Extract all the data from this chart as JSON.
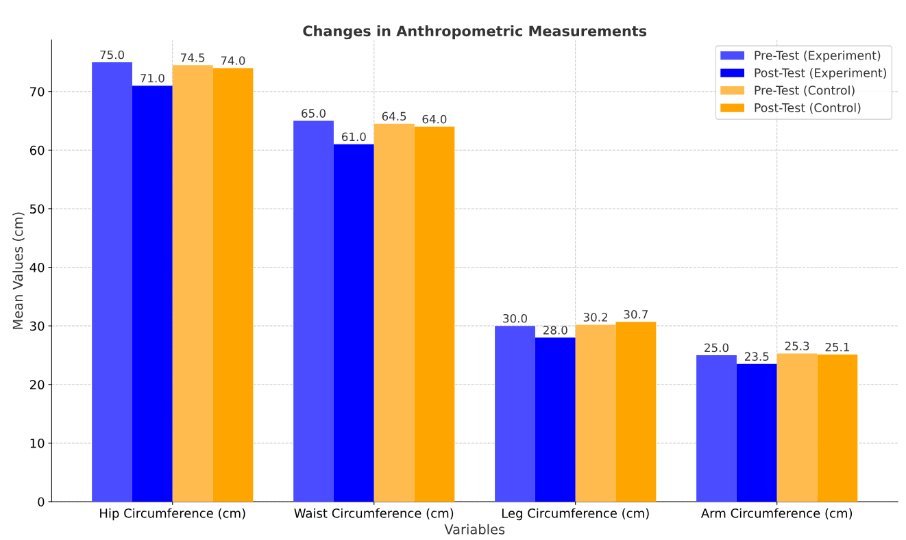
{
  "chart_data": {
    "type": "bar",
    "title": "Changes in Anthropometric Measurements",
    "xlabel": "Variables",
    "ylabel": "Mean Values (cm)",
    "categories": [
      "Hip Circumference (cm)",
      "Waist Circumference (cm)",
      "Leg Circumference (cm)",
      "Arm Circumference (cm)"
    ],
    "series": [
      {
        "name": "Pre-Test (Experiment)",
        "color": "#4b4bff",
        "values": [
          75.0,
          65.0,
          30.0,
          25.0
        ],
        "value_labels": [
          "75.0",
          "65.0",
          "30.0",
          "25.0"
        ]
      },
      {
        "name": "Post-Test (Experiment)",
        "color": "#0000ff",
        "values": [
          71.0,
          61.0,
          28.0,
          23.5
        ],
        "value_labels": [
          "71.0",
          "61.0",
          "28.0",
          "23.5"
        ]
      },
      {
        "name": "Pre-Test (Control)",
        "color": "#ffbb4d",
        "values": [
          74.5,
          64.5,
          30.2,
          25.3
        ],
        "value_labels": [
          "74.5",
          "64.5",
          "30.2",
          "25.3"
        ]
      },
      {
        "name": "Post-Test (Control)",
        "color": "#ffa500",
        "values": [
          74.0,
          64.0,
          30.7,
          25.1
        ],
        "value_labels": [
          "74.0",
          "64.0",
          "30.7",
          "25.1"
        ]
      }
    ],
    "ylim": [
      0,
      78.8
    ],
    "yticks": [
      0,
      10,
      20,
      30,
      40,
      50,
      60,
      70
    ],
    "grid": true,
    "legend": "top right"
  }
}
